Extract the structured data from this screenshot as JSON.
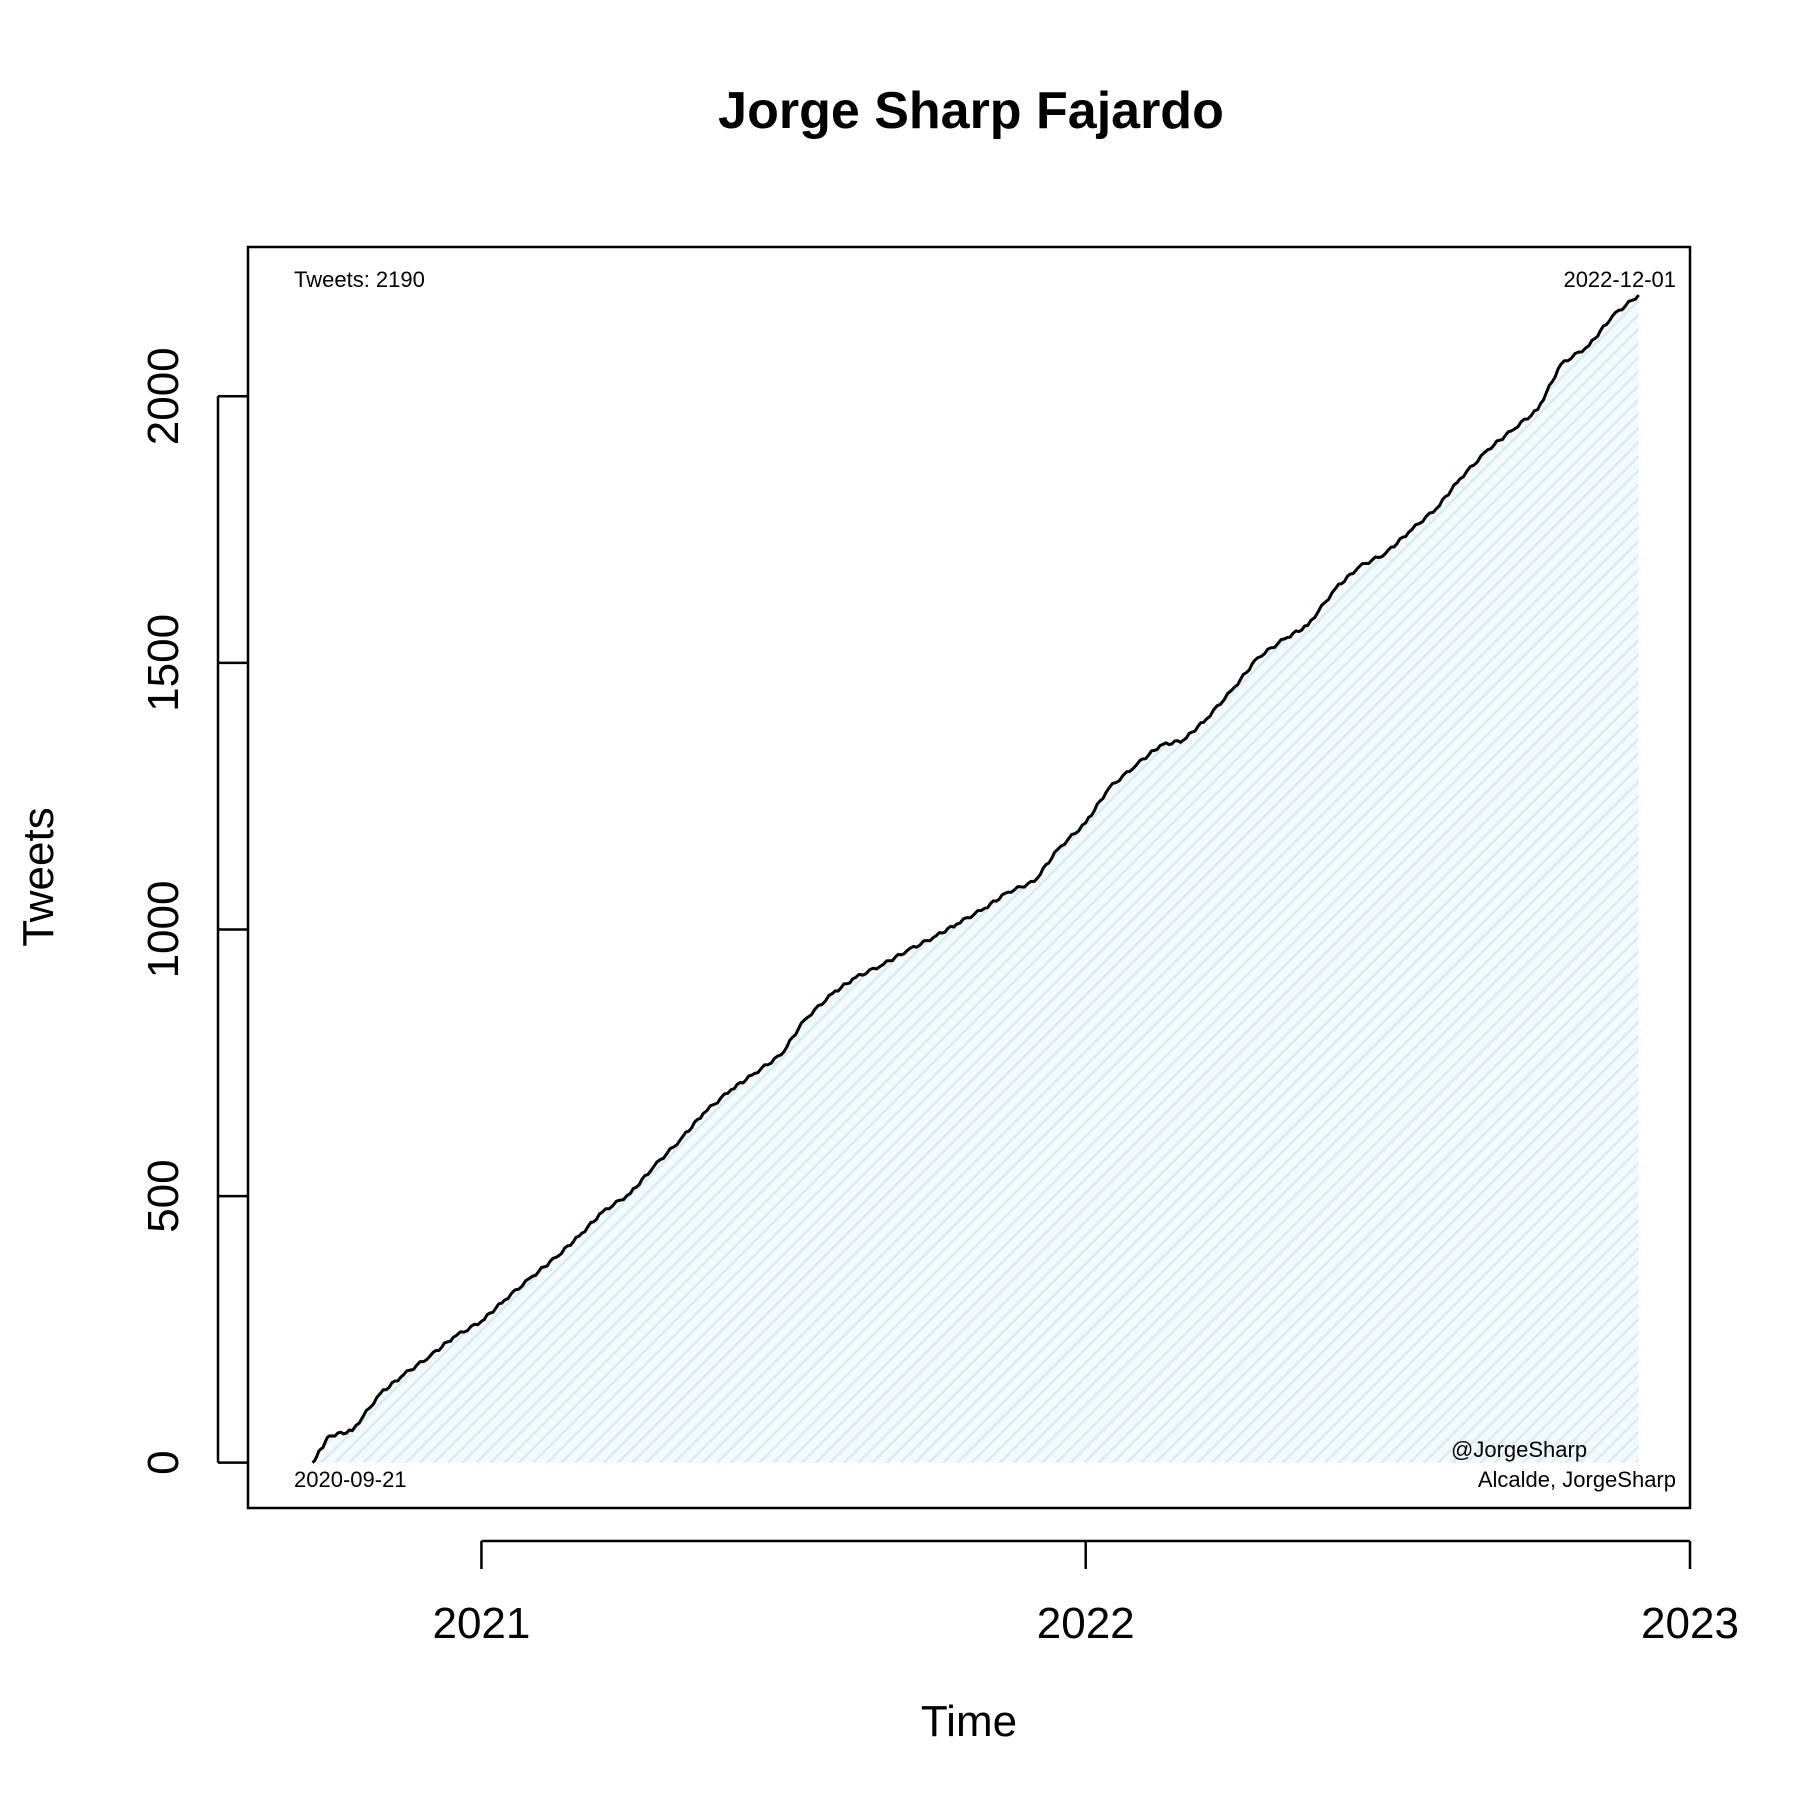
{
  "chart_data": {
    "type": "line",
    "title": "Jorge Sharp Fajardo",
    "xlabel": "Time",
    "ylabel": "Tweets",
    "x_ticks": [
      "2021",
      "2022",
      "2023"
    ],
    "y_ticks": [
      "0",
      "500",
      "1000",
      "1500",
      "2000"
    ],
    "xlim": [
      "2020-08-13",
      "2023-01-01"
    ],
    "ylim": [
      -85,
      2280
    ],
    "fill": "hatched area under curve, light blue",
    "colors": {
      "line": "#000000",
      "fill": "#d8ecf2"
    },
    "annotations": {
      "top_left": "Tweets: 2190",
      "top_right": "2022-12-01",
      "bottom_left": "2020-09-21",
      "bottom_right_line1": "@JorgeSharp",
      "bottom_right_line2": "Alcalde, JorgeSharp"
    },
    "series": [
      {
        "x": [
          "2020-09-21",
          "2020-10-01",
          "2020-10-15",
          "2020-11-01",
          "2020-11-15",
          "2020-12-01",
          "2020-12-15",
          "2021-01-01",
          "2021-01-15",
          "2021-02-01",
          "2021-02-15",
          "2021-03-01",
          "2021-03-15",
          "2021-04-01",
          "2021-04-15",
          "2021-05-01",
          "2021-05-15",
          "2021-06-01",
          "2021-06-15",
          "2021-07-01",
          "2021-07-15",
          "2021-08-01",
          "2021-08-15",
          "2021-09-01",
          "2021-09-15",
          "2021-10-01",
          "2021-10-15",
          "2021-11-01",
          "2021-11-15",
          "2021-12-01",
          "2021-12-15",
          "2022-01-01",
          "2022-01-15",
          "2022-02-01",
          "2022-02-15",
          "2022-03-01",
          "2022-03-15",
          "2022-04-01",
          "2022-04-15",
          "2022-05-01",
          "2022-05-15",
          "2022-06-01",
          "2022-06-15",
          "2022-07-01",
          "2022-07-15",
          "2022-08-01",
          "2022-08-15",
          "2022-09-01",
          "2022-09-15",
          "2022-10-01",
          "2022-10-15",
          "2022-11-01",
          "2022-11-15",
          "2022-12-01"
        ],
        "y": [
          0,
          50,
          60,
          130,
          165,
          200,
          235,
          265,
          305,
          350,
          385,
          425,
          470,
          505,
          555,
          605,
          655,
          700,
          730,
          765,
          830,
          880,
          910,
          935,
          960,
          985,
          1010,
          1040,
          1070,
          1090,
          1150,
          1200,
          1265,
          1310,
          1345,
          1355,
          1395,
          1455,
          1510,
          1545,
          1570,
          1640,
          1680,
          1705,
          1745,
          1790,
          1845,
          1900,
          1935,
          1975,
          2060,
          2095,
          2150,
          2190
        ]
      }
    ]
  }
}
